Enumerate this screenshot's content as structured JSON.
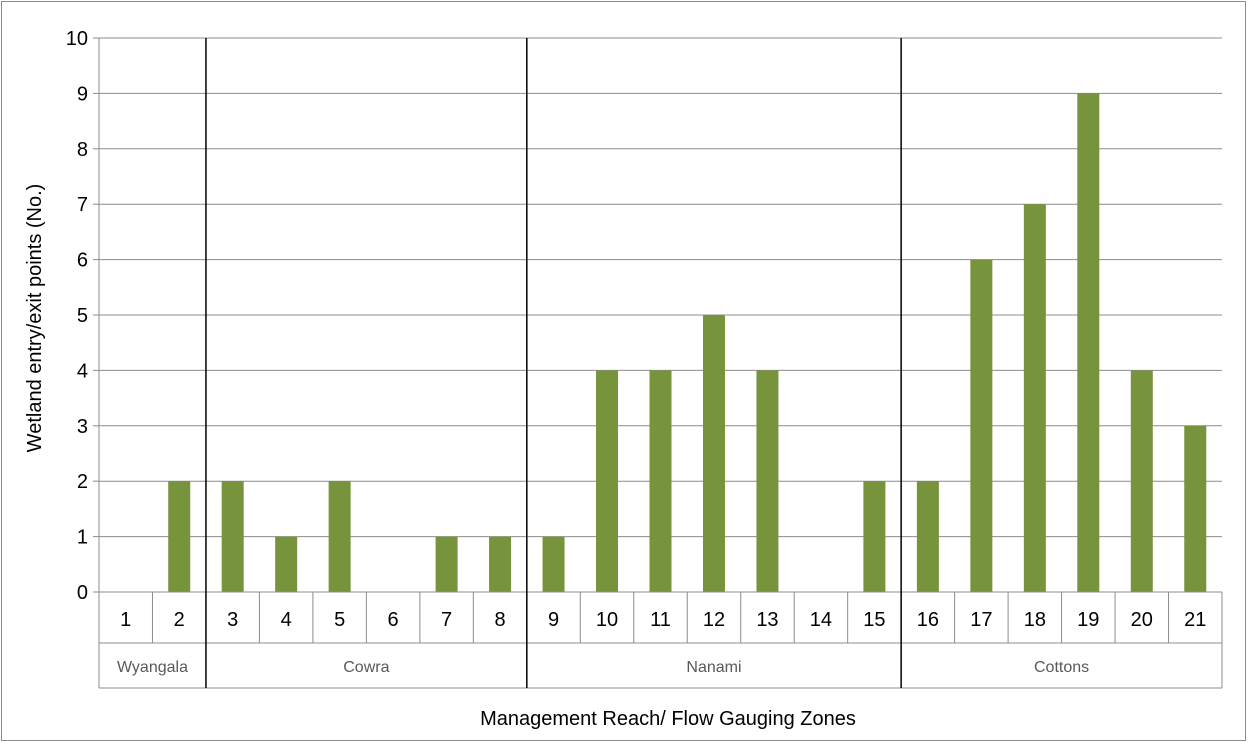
{
  "chart_data": {
    "type": "bar",
    "xlabel": "Management Reach/ Flow Gauging Zones",
    "ylabel": "Wetland entry/exit points (No.)",
    "ylim": [
      0,
      10
    ],
    "yticks": [
      "0",
      "1",
      "2",
      "3",
      "4",
      "5",
      "6",
      "7",
      "8",
      "9",
      "10"
    ],
    "grid": true,
    "categories": [
      "1",
      "2",
      "3",
      "4",
      "5",
      "6",
      "7",
      "8",
      "9",
      "10",
      "11",
      "12",
      "13",
      "14",
      "15",
      "16",
      "17",
      "18",
      "19",
      "20",
      "21"
    ],
    "values": [
      0,
      2,
      2,
      1,
      2,
      0,
      1,
      1,
      1,
      4,
      4,
      5,
      4,
      0,
      2,
      2,
      6,
      7,
      9,
      4,
      3
    ],
    "groups": [
      {
        "name": "Wyangala",
        "categories": [
          "1",
          "2"
        ]
      },
      {
        "name": "Cowra",
        "categories": [
          "3",
          "4",
          "5",
          "6",
          "7",
          "8"
        ]
      },
      {
        "name": "Nanami",
        "categories": [
          "9",
          "10",
          "11",
          "12",
          "13",
          "14",
          "15"
        ]
      },
      {
        "name": "Cottons",
        "categories": [
          "16",
          "17",
          "18",
          "19",
          "20",
          "21"
        ]
      }
    ],
    "bar_color": "#77933c",
    "gridline_color": "#8c8c8c"
  }
}
